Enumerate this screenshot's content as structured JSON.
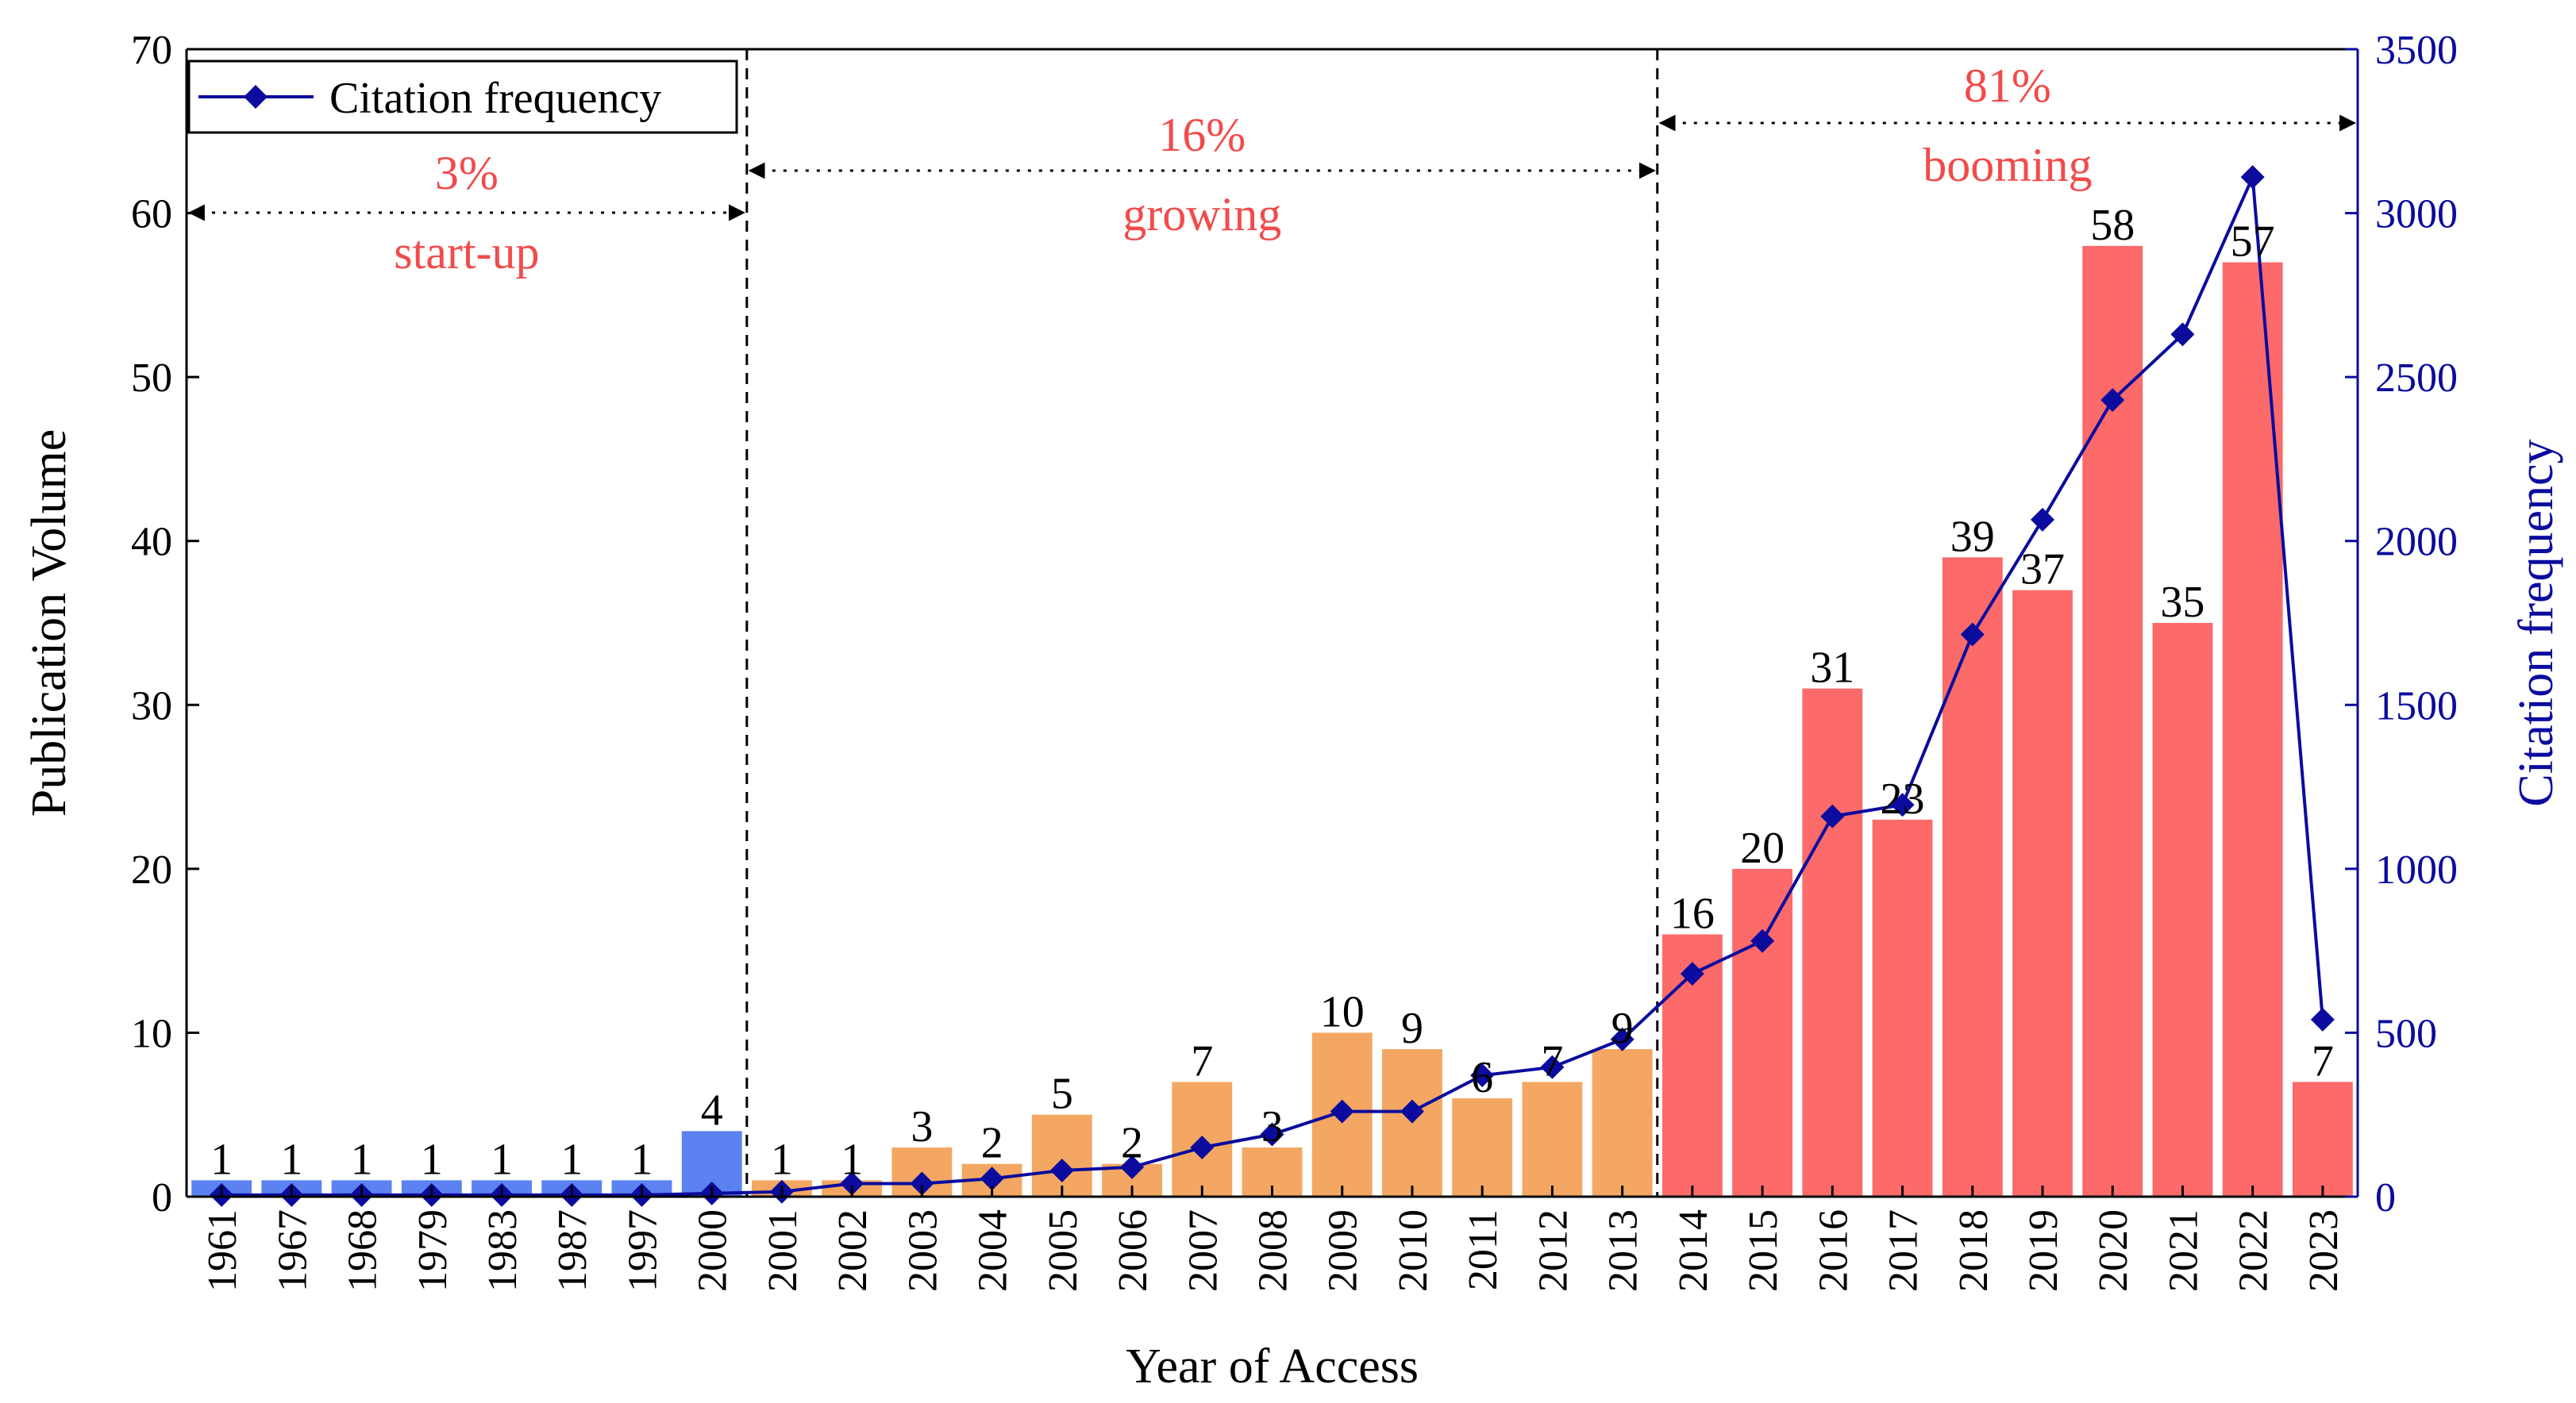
{
  "chart_data": {
    "type": "bar+line",
    "xlabel": "Year of Access",
    "ylabel": "Publication Volume",
    "ylabel_right": "Citation frequency",
    "ylim": [
      0,
      70
    ],
    "ylim_right": [
      0,
      3500
    ],
    "yticks": [
      0,
      10,
      20,
      30,
      40,
      50,
      60,
      70
    ],
    "yticks_right": [
      0,
      500,
      1000,
      1500,
      2000,
      2500,
      3000,
      3500
    ],
    "categories": [
      "1961",
      "1967",
      "1968",
      "1979",
      "1983",
      "1987",
      "1997",
      "2000",
      "2001",
      "2002",
      "2003",
      "2004",
      "2005",
      "2006",
      "2007",
      "2008",
      "2009",
      "2010",
      "2011",
      "2012",
      "2013",
      "2014",
      "2015",
      "2016",
      "2017",
      "2018",
      "2019",
      "2020",
      "2021",
      "2022",
      "2023"
    ],
    "series": [
      {
        "type": "bar",
        "values": [
          1,
          1,
          1,
          1,
          1,
          1,
          1,
          4,
          1,
          1,
          3,
          2,
          5,
          2,
          7,
          3,
          10,
          9,
          6,
          7,
          9,
          16,
          20,
          31,
          23,
          39,
          37,
          58,
          35,
          57,
          7
        ]
      },
      {
        "name": "Citation frequency",
        "type": "line",
        "axis": "right",
        "color": "#0b0b9e",
        "values": [
          5,
          5,
          5,
          5,
          5,
          5,
          5,
          10,
          15,
          40,
          40,
          55,
          80,
          90,
          150,
          190,
          260,
          260,
          370,
          395,
          480,
          680,
          780,
          1160,
          1195,
          1715,
          2065,
          2430,
          2630,
          3110,
          540
        ]
      }
    ],
    "legend": {
      "placement": "top-left",
      "entries": [
        "Citation frequency"
      ]
    },
    "stages": [
      {
        "percent": "3%",
        "label": "start-up",
        "color": "#5b82f0",
        "from_index": 0,
        "to_index": 7
      },
      {
        "percent": "16%",
        "label": "growing",
        "color": "#f4a762",
        "from_index": 8,
        "to_index": 20
      },
      {
        "percent": "81%",
        "label": "booming",
        "color": "#fc6a6a",
        "from_index": 21,
        "to_index": 30
      }
    ],
    "annotation_color": "#f24b4b",
    "grid": false
  }
}
